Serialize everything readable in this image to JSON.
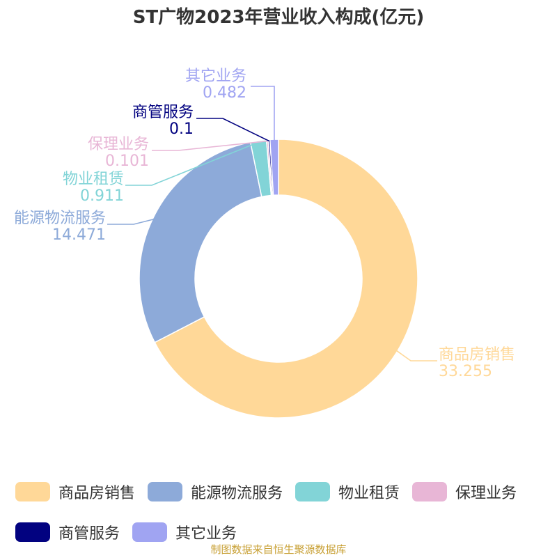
{
  "chart_data": {
    "type": "pie",
    "title": "ST广物2023年营业收入构成(亿元)",
    "categories": [
      "商品房销售",
      "能源物流服务",
      "物业租赁",
      "保理业务",
      "商管服务",
      "其它业务"
    ],
    "values": [
      33.255,
      14.471,
      0.911,
      0.101,
      0.1,
      0.482
    ],
    "value_labels": [
      "33.255",
      "14.471",
      "0.911",
      "0.101",
      "0.1",
      "0.482"
    ],
    "colors": [
      "#FFD898",
      "#8DAAD9",
      "#82D4D7",
      "#E8B6D6",
      "#020280",
      "#A0A4F2"
    ],
    "legend_position": "bottom",
    "donut": true
  },
  "source_note": "制图数据来自恒生聚源数据库"
}
